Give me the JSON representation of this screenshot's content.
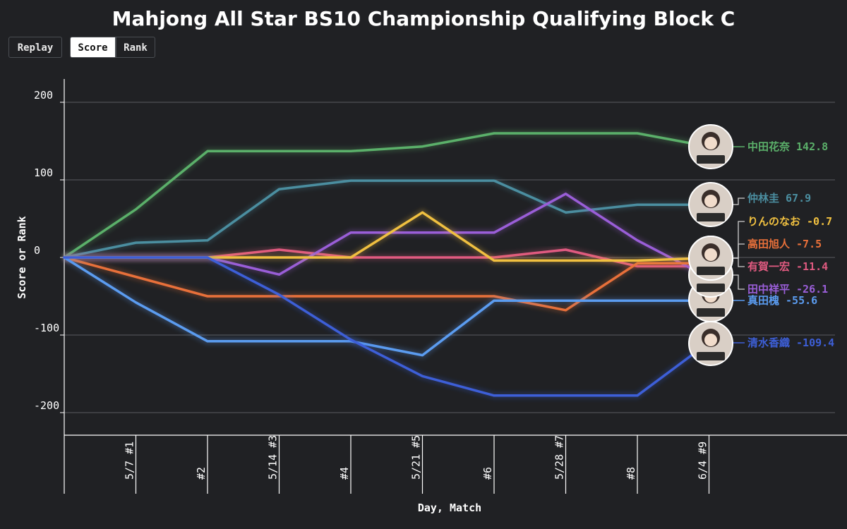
{
  "title": "Mahjong All Star BS10 Championship Qualifying Block C",
  "controls": {
    "replay": "Replay",
    "score": "Score",
    "rank": "Rank",
    "active": "Score"
  },
  "chart_data": {
    "type": "line",
    "title": "Mahjong All Star BS10 Championship Qualifying Block C",
    "xlabel": "Day, Match",
    "ylabel": "Score or Rank",
    "x": [
      "",
      "5/7 #1",
      "#2",
      "5/14 #3",
      "#4",
      "5/21 #5",
      "#6",
      "5/28 #7",
      "#8",
      "6/4 #9"
    ],
    "x_ticks": [
      "5/7 #1",
      "#2",
      "5/14 #3",
      "#4",
      "5/21 #5",
      "#6",
      "5/28 #7",
      "#8",
      "6/4 #9"
    ],
    "y_ticks": [
      200,
      100,
      0,
      -100,
      -200
    ],
    "ylim": [
      -229,
      229
    ],
    "grid": true,
    "series": [
      {
        "name": "中田花奈",
        "final": "142.8",
        "color": "#5bb06a",
        "values": [
          0,
          62,
          137,
          137,
          137,
          143,
          160,
          160,
          160,
          142.8
        ]
      },
      {
        "name": "仲林圭",
        "final": "67.9",
        "color": "#4b8ea0",
        "values": [
          0,
          19,
          22,
          88,
          99,
          99,
          99,
          58,
          68,
          67.9
        ]
      },
      {
        "name": "りんのなお",
        "final": "-0.7",
        "color": "#f0c040",
        "values": [
          0,
          0,
          0,
          0,
          0,
          58,
          -4,
          -4,
          -4,
          -0.7
        ]
      },
      {
        "name": "高田旭人",
        "final": "-7.5",
        "color": "#e8703a",
        "values": [
          0,
          -25,
          -50,
          -50,
          -50,
          -50,
          -50,
          -68,
          -7.5,
          -7.5
        ]
      },
      {
        "name": "有賀一宏",
        "final": "-11.4",
        "color": "#e05a80",
        "values": [
          0,
          0,
          0,
          10,
          0,
          0,
          0,
          10,
          -11.4,
          -11.4
        ]
      },
      {
        "name": "田中祥平",
        "final": "-26.1",
        "color": "#9a5ed8",
        "values": [
          0,
          0,
          0,
          -22,
          32,
          32,
          32,
          82,
          22,
          -26.1
        ]
      },
      {
        "name": "真田槐",
        "final": "-55.6",
        "color": "#5b9cf0",
        "values": [
          0,
          -58,
          -108,
          -108,
          -108,
          -126,
          -55.6,
          -55.6,
          -55.6,
          -55.6
        ]
      },
      {
        "name": "清水香織",
        "final": "-109.4",
        "color": "#3d5fd8",
        "values": [
          0,
          0,
          0,
          -48,
          -106,
          -153,
          -178,
          -178,
          -178,
          -109.4
        ]
      }
    ]
  }
}
